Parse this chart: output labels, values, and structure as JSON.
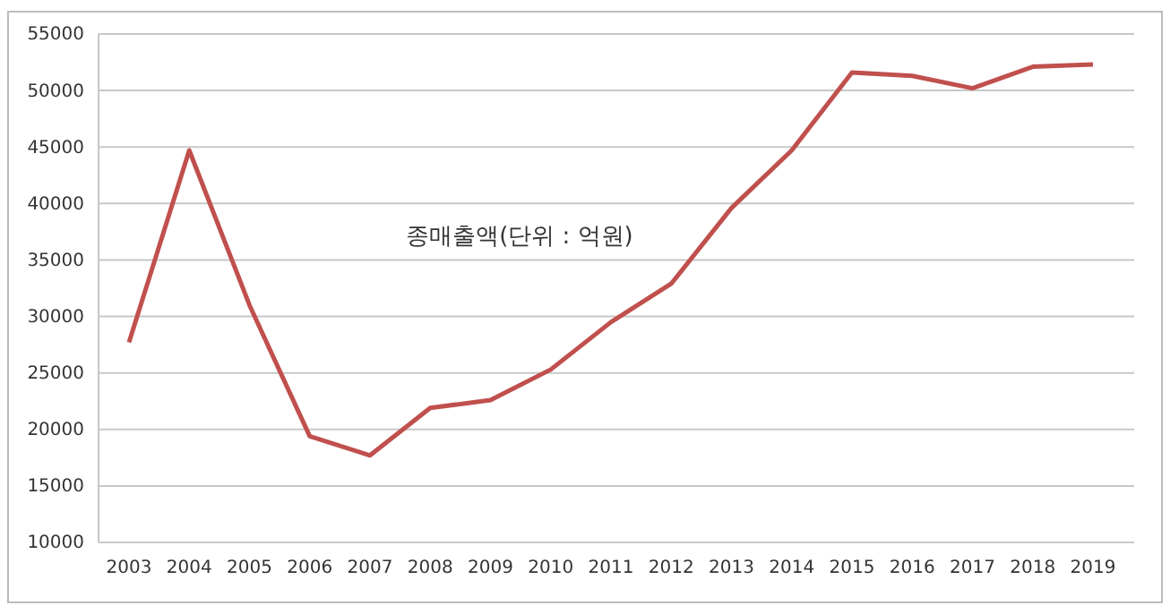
{
  "chart_data": {
    "type": "line",
    "title": "종매출액(단위 : 억원)",
    "categories": [
      "2003",
      "2004",
      "2005",
      "2006",
      "2007",
      "2008",
      "2009",
      "2010",
      "2011",
      "2012",
      "2013",
      "2014",
      "2015",
      "2016",
      "2017",
      "2018",
      "2019"
    ],
    "series": [
      {
        "color": "#c0504d",
        "values": [
          27700,
          44700,
          31000,
          19400,
          17700,
          21900,
          22600,
          25300,
          29500,
          32900,
          39600,
          44700,
          51600,
          51300,
          50200,
          52100,
          52300
        ]
      }
    ],
    "ylim": [
      10000,
      55000
    ],
    "yticks": [
      10000,
      15000,
      20000,
      25000,
      30000,
      35000,
      40000,
      45000,
      50000,
      55000
    ],
    "grid": "y",
    "marker": "none",
    "line_style": "solid"
  }
}
